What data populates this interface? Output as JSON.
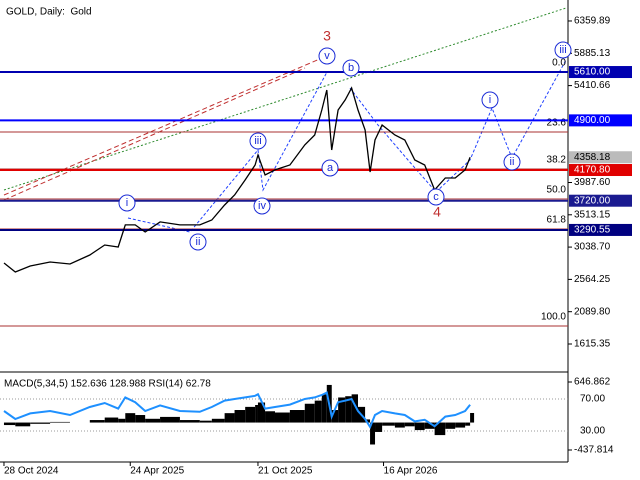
{
  "chart_data": {
    "type": "line",
    "title": "GOLD, Daily:  Gold",
    "color": "#000000",
    "x": [
      0,
      16,
      37,
      65,
      93,
      121,
      142,
      161,
      171,
      185,
      199,
      220,
      248,
      276,
      293,
      311,
      325,
      340,
      354,
      358,
      368,
      382,
      403,
      424,
      438,
      448,
      455,
      462,
      471,
      481,
      490,
      499,
      509,
      516,
      523,
      533,
      551,
      565,
      579,
      593,
      607,
      622,
      636,
      650,
      657
    ],
    "values": [
      2805,
      2673,
      2761,
      2820,
      2791,
      2923,
      3070,
      3040,
      3364,
      3364,
      3261,
      3408,
      3364,
      3364,
      3437,
      3657,
      3804,
      4025,
      4245,
      4392,
      4098,
      4172,
      4245,
      4539,
      4685,
      5053,
      5346,
      4465,
      5053,
      5200,
      5376,
      5053,
      4759,
      4142,
      4612,
      4832,
      4685,
      4612,
      4318,
      4245,
      3878,
      4054,
      4054,
      4172,
      4358.18
    ],
    "xlim": [
      -5.6,
      795
    ],
    "xticks": [
      {
        "value": 0,
        "label": "28 Oct 2024"
      },
      {
        "value": 178,
        "label": "24 Apr 2025"
      },
      {
        "value": 358,
        "label": "21 Oct 2025"
      },
      {
        "value": 535,
        "label": "16 Apr 2026"
      }
    ],
    "ylim": [
      1204,
      6668
    ],
    "yticks": [
      6359.89,
      5885.13,
      5410.66,
      {
        "value": 3987.6,
        "label": "3987.60"
      },
      3513.15,
      {
        "value": 3038.7,
        "label": "3038.70"
      },
      2564.25,
      {
        "value": 2089.8,
        "label": "2089.80"
      },
      1615.35
    ],
    "levels": [
      {
        "value": 5610,
        "label": "5610.00",
        "color": "#0000b0"
      },
      {
        "value": 4900,
        "label": "4900.00",
        "color": "#0000ff"
      },
      {
        "value": 4170.8,
        "label": "4170.80",
        "color": "#e00000"
      },
      {
        "value": 3720,
        "label": "3720.00",
        "color": "#1a1a90"
      },
      {
        "value": 3290.55,
        "label": "3290.55",
        "color": "#000080"
      }
    ],
    "fib": {
      "start": 5610,
      "end": 1880,
      "color": "#a83232",
      "levels": [
        {
          "value": 0,
          "label": "0.0"
        },
        23.6,
        38.2,
        {
          "value": 50,
          "label": "50.0"
        },
        61.8,
        {
          "value": 100,
          "label": "100.0"
        }
      ]
    },
    "wave_labels": [
      "3",
      "4",
      "v",
      "b",
      "a",
      "c",
      "iii",
      "iv",
      "i",
      "ii",
      "i",
      "ii",
      "iii"
    ],
    "indicator_title": "MACD(5,34,5) 152.636 128.988 RSI(14) 62.78",
    "macd": {
      "color": "#000000",
      "ylim": [
        -437.814,
        646.862
      ],
      "yticks": [
        646.862,
        -437.814
      ],
      "values": [
        -40,
        -60,
        -20,
        10,
        0,
        40,
        80,
        60,
        150,
        120,
        60,
        90,
        40,
        30,
        60,
        150,
        200,
        250,
        280,
        320,
        180,
        160,
        200,
        300,
        350,
        450,
        600,
        200,
        400,
        420,
        450,
        250,
        50,
        -350,
        -150,
        -50,
        -80,
        -60,
        -120,
        -100,
        -200,
        -100,
        -80,
        -50,
        152.636
      ]
    },
    "rsi": {
      "color": "#1e90ff",
      "ylim": [
        0,
        100
      ],
      "yticks": [
        {
          "value": 70,
          "label": "70.00"
        },
        {
          "value": 30,
          "label": "30.00"
        }
      ],
      "values": [
        55,
        45,
        52,
        55,
        50,
        60,
        65,
        58,
        72,
        66,
        55,
        62,
        55,
        54,
        60,
        68,
        70,
        72,
        74,
        76,
        58,
        60,
        63,
        70,
        72,
        75,
        78,
        48,
        66,
        68,
        70,
        55,
        45,
        35,
        50,
        55,
        52,
        50,
        42,
        44,
        36,
        48,
        50,
        55,
        62.78
      ]
    }
  }
}
